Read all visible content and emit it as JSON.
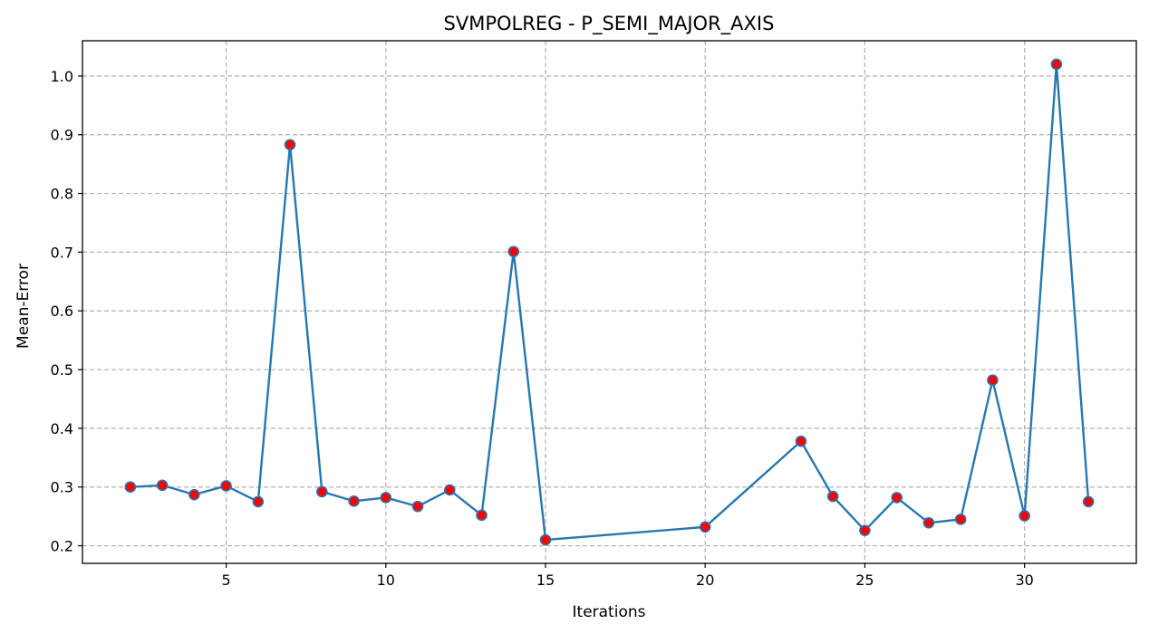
{
  "chart_data": {
    "type": "line",
    "title": "SVMPOLREG - P_SEMI_MAJOR_AXIS",
    "xlabel": "Iterations",
    "ylabel": "Mean-Error",
    "xlim": [
      0.5,
      33.5
    ],
    "ylim": [
      0.17,
      1.06
    ],
    "xticks": [
      5,
      10,
      15,
      20,
      25,
      30
    ],
    "yticks": [
      0.2,
      0.3,
      0.4,
      0.5,
      0.6,
      0.7,
      0.8,
      0.9,
      1.0
    ],
    "ytick_labels": [
      "0.2",
      "0.3",
      "0.4",
      "0.5",
      "0.6",
      "0.7",
      "0.8",
      "0.9",
      "1.0"
    ],
    "grid": true,
    "line_color": "#2777b0",
    "marker_fill": "#ff0000",
    "marker_edge": "#2777b0",
    "x": [
      2,
      3,
      4,
      5,
      6,
      7,
      8,
      9,
      10,
      11,
      12,
      13,
      14,
      15,
      20,
      23,
      24,
      25,
      26,
      27,
      28,
      29,
      30,
      31,
      32
    ],
    "y": [
      0.3,
      0.303,
      0.287,
      0.302,
      0.275,
      0.883,
      0.292,
      0.276,
      0.282,
      0.267,
      0.295,
      0.252,
      0.701,
      0.21,
      0.232,
      0.378,
      0.284,
      0.226,
      0.282,
      0.239,
      0.245,
      0.482,
      0.251,
      1.02,
      0.275
    ]
  }
}
